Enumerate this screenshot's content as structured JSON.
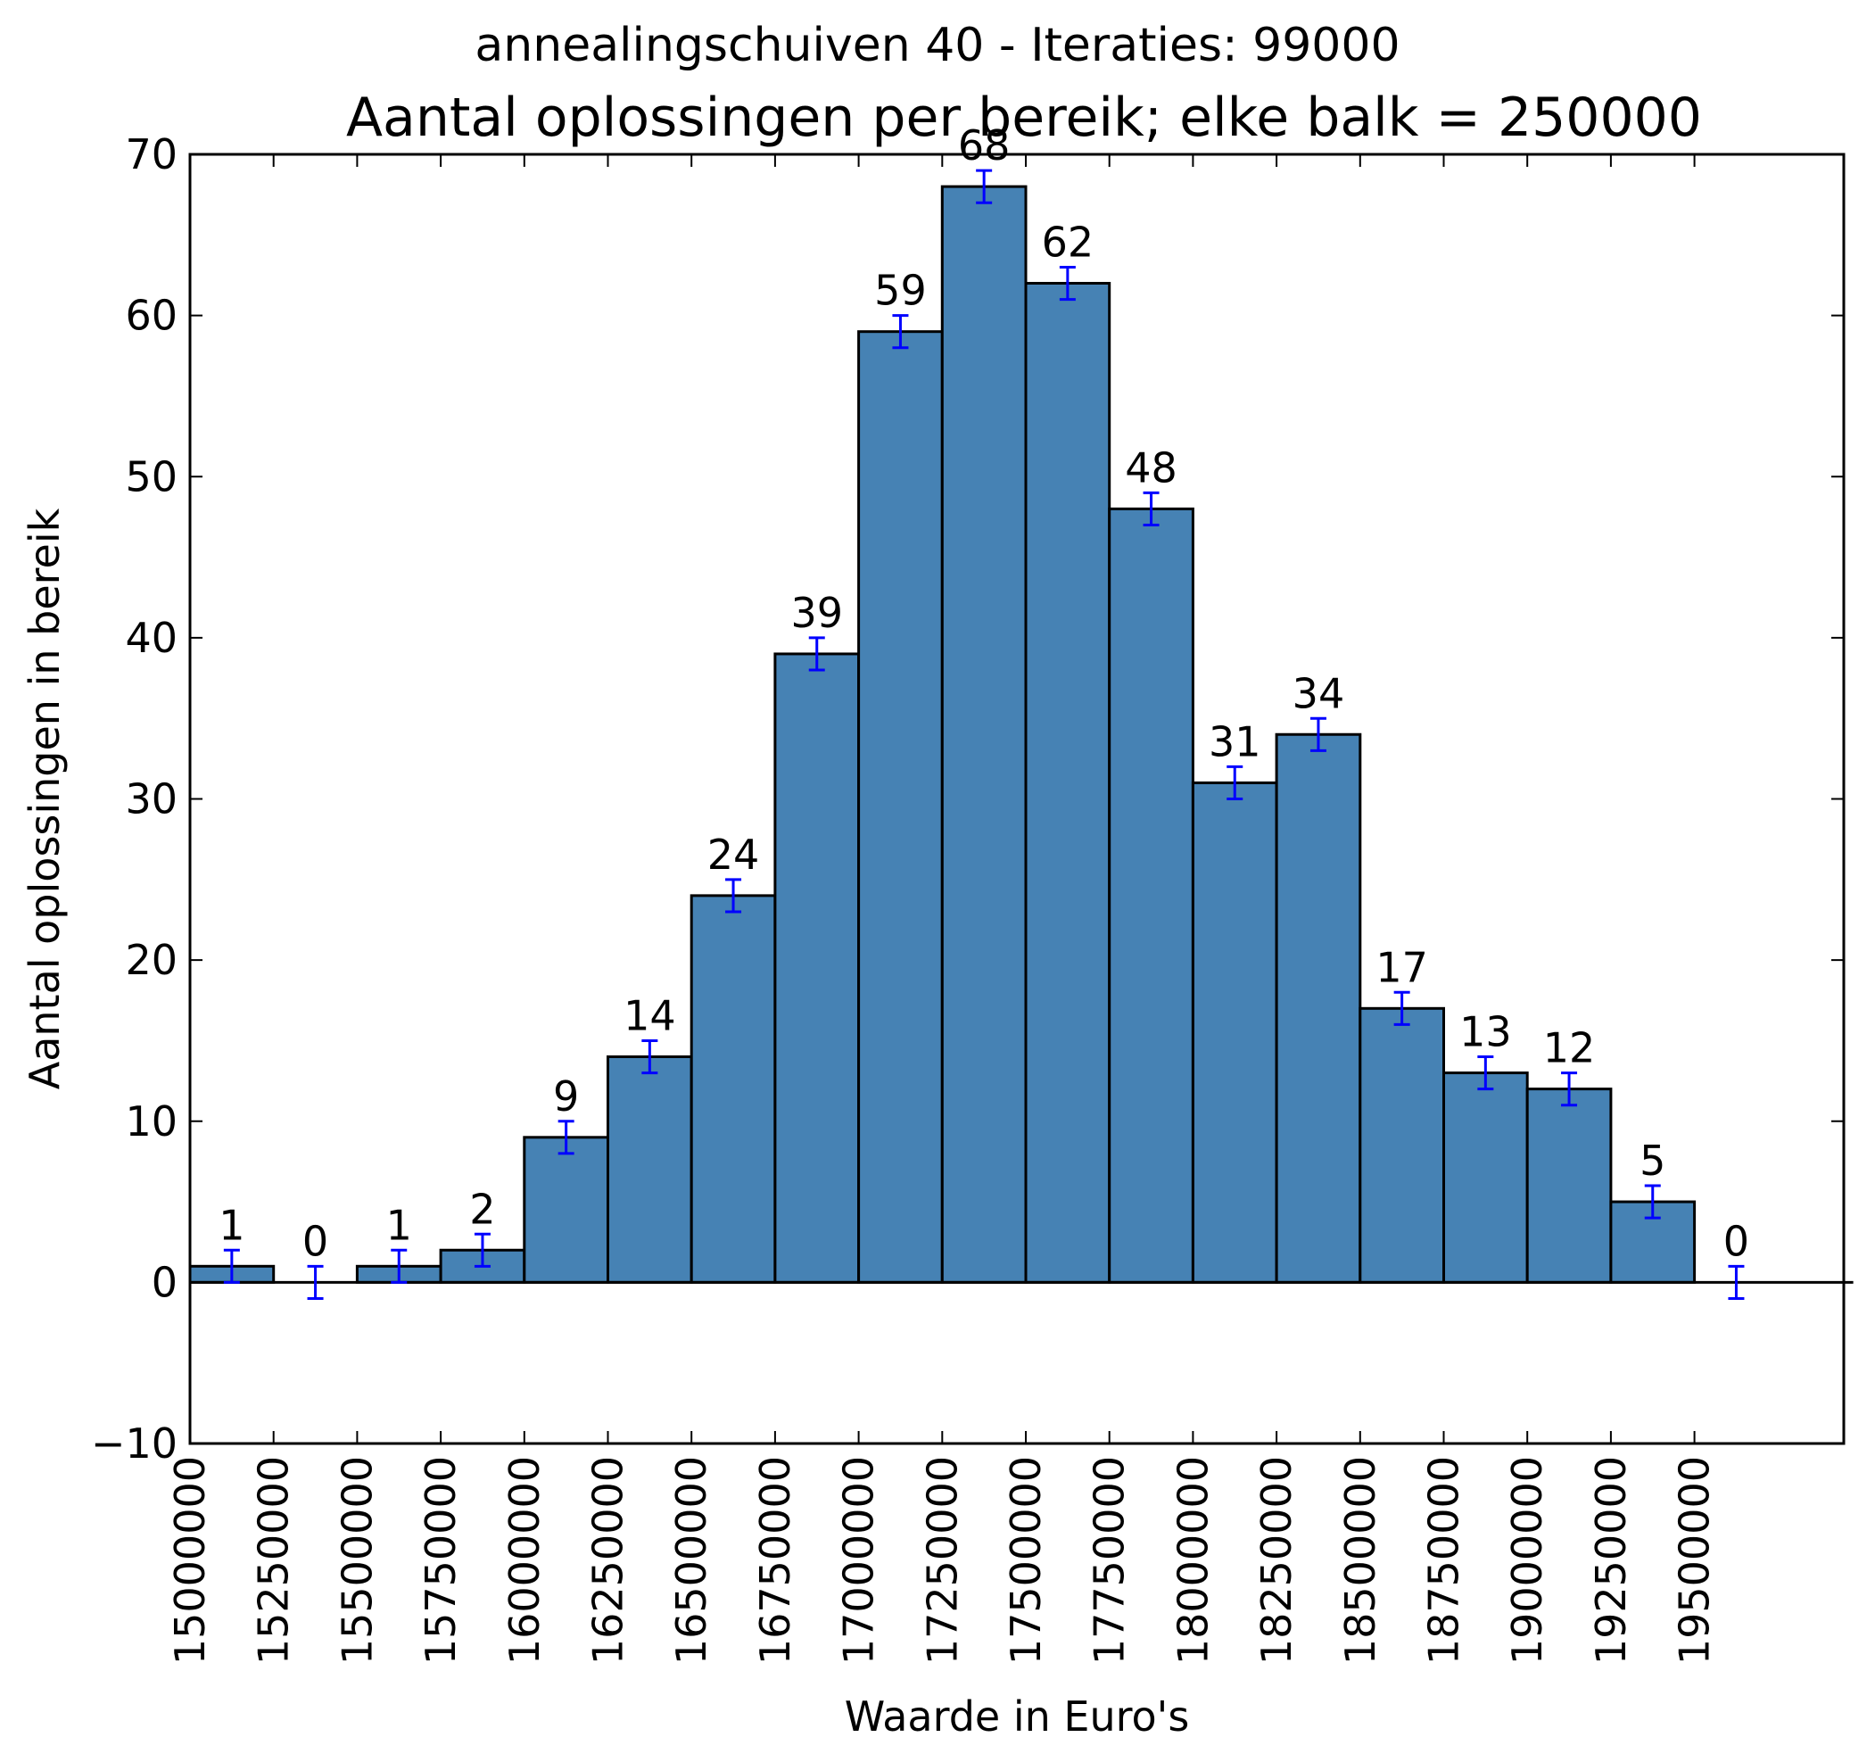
{
  "chart_data": {
    "type": "bar",
    "suptitle": "annealingschuiven 40 - Iteraties: 99000",
    "title": "Aantal oplossingen per bereik; elke balk = 250000",
    "xlabel": "Waarde in Euro's",
    "ylabel": "Aantal oplossingen in bereik",
    "ylim": [
      -10,
      70
    ],
    "xlim": [
      15000000,
      19750000
    ],
    "bin_width": 250000,
    "yticks": [
      -10,
      0,
      10,
      20,
      30,
      40,
      50,
      60,
      70
    ],
    "ytick_labels": [
      "−10",
      "0",
      "10",
      "20",
      "30",
      "40",
      "50",
      "60",
      "70"
    ],
    "xticks": [
      15000000,
      15250000,
      15500000,
      15750000,
      16000000,
      16250000,
      16500000,
      16750000,
      17000000,
      17250000,
      17500000,
      17750000,
      18000000,
      18250000,
      18500000,
      18750000,
      19000000,
      19250000,
      19500000
    ],
    "xtick_labels": [
      "15000000",
      "15250000",
      "15500000",
      "15750000",
      "16000000",
      "16250000",
      "16500000",
      "16750000",
      "17000000",
      "17250000",
      "17500000",
      "17750000",
      "18000000",
      "18250000",
      "18500000",
      "18750000",
      "19000000",
      "19250000",
      "19500000"
    ],
    "bin_starts": [
      15000000,
      15250000,
      15500000,
      15750000,
      16000000,
      16250000,
      16500000,
      16750000,
      17000000,
      17250000,
      17500000,
      17750000,
      18000000,
      18250000,
      18500000,
      18750000,
      19000000,
      19250000,
      19500000
    ],
    "values": [
      1,
      0,
      1,
      2,
      9,
      14,
      24,
      39,
      59,
      68,
      62,
      48,
      31,
      34,
      17,
      13,
      12,
      5,
      0
    ],
    "value_labels": [
      "1",
      "0",
      "1",
      "2",
      "9",
      "14",
      "24",
      "39",
      "59",
      "68",
      "62",
      "48",
      "31",
      "34",
      "17",
      "13",
      "12",
      "5",
      "0"
    ],
    "error": 1,
    "bar_color": "#4682b4",
    "errorbar_color": "#0000ff",
    "grid": false
  }
}
